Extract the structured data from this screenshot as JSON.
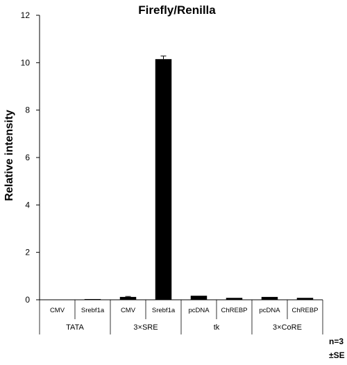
{
  "chart_data": {
    "type": "bar",
    "title": "Firefly/Renilla",
    "ylabel": "Relative intensity",
    "xlabel": "",
    "ylim": [
      0,
      12
    ],
    "yticks": [
      0,
      2,
      4,
      6,
      8,
      10,
      12
    ],
    "grid": false,
    "legend": "none",
    "categories": [
      "CMV",
      "Srebf1a",
      "CMV",
      "Srebf1a",
      "pcDNA",
      "ChREBP",
      "pcDNA",
      "ChREBP"
    ],
    "groups": [
      {
        "label": "TATA",
        "size": 2
      },
      {
        "label": "3×SRE",
        "size": 2
      },
      {
        "label": "tk",
        "size": 2
      },
      {
        "label": "3×CoRE",
        "size": 2
      }
    ],
    "values": [
      0.0,
      0.03,
      0.12,
      10.15,
      0.17,
      0.08,
      0.12,
      0.08
    ],
    "errors": [
      0.0,
      0.0,
      0.02,
      0.13,
      0.0,
      0.0,
      0.0,
      0.0
    ],
    "bar_color": "#000000",
    "notes": [
      "n=3",
      "±SE"
    ]
  }
}
